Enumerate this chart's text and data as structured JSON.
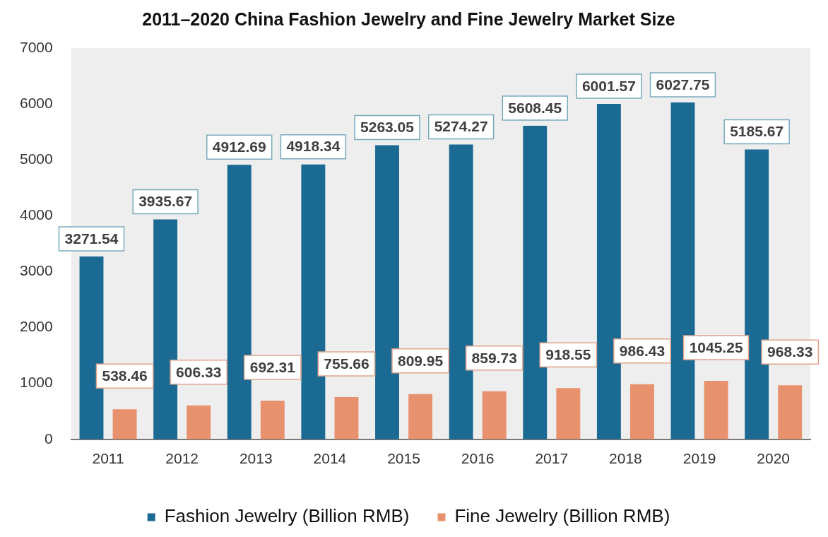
{
  "chart_data": {
    "type": "bar",
    "title": "2011–2020 China Fashion Jewelry and Fine Jewelry Market Size",
    "categories": [
      "2011",
      "2012",
      "2013",
      "2014",
      "2015",
      "2016",
      "2017",
      "2018",
      "2019",
      "2020"
    ],
    "series": [
      {
        "name": "Fashion Jewelry (Billion RMB)",
        "color": "#1b6a93",
        "values": [
          3271.54,
          3935.67,
          4912.69,
          4918.34,
          5263.05,
          5274.27,
          5608.45,
          6001.57,
          6027.75,
          5185.67
        ]
      },
      {
        "name": "Fine Jewelry (Billion RMB)",
        "color": "#e8916e",
        "values": [
          538.46,
          606.33,
          692.31,
          755.66,
          809.95,
          859.73,
          918.55,
          986.43,
          1045.25,
          968.33
        ]
      }
    ],
    "ylim": [
      0,
      7000
    ],
    "yticks": [
      0,
      1000,
      2000,
      3000,
      4000,
      5000,
      6000,
      7000
    ],
    "data_labels": true,
    "grid": false,
    "legend": "bottom"
  }
}
